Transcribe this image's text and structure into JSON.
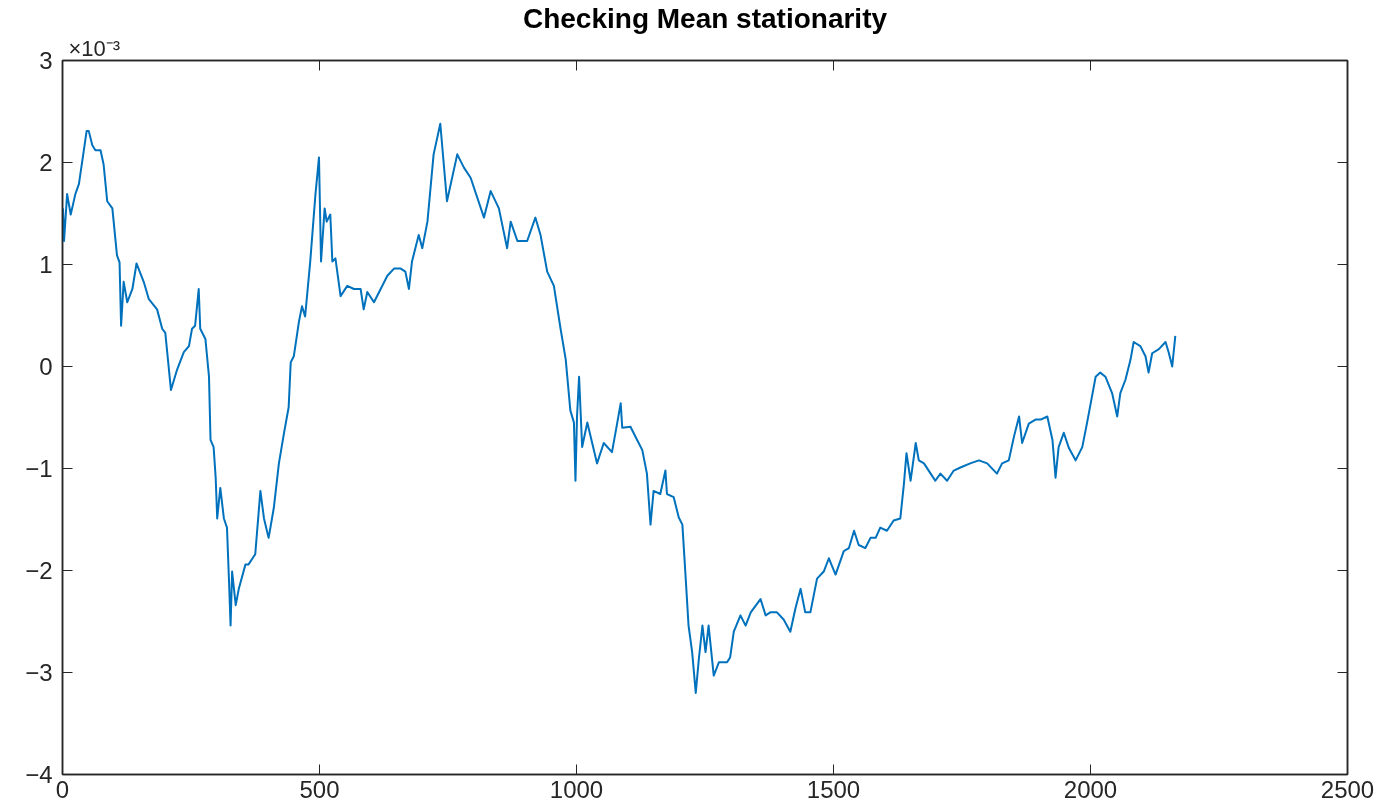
{
  "chart_data": {
    "type": "line",
    "title": "Checking Mean stationarity",
    "annotations": [
      "×10⁻³"
    ],
    "x": [
      1,
      3,
      9,
      16,
      25,
      32,
      47,
      51,
      58,
      64,
      74,
      80,
      87,
      97,
      106,
      111,
      114,
      119,
      126,
      136,
      144,
      158,
      168,
      184,
      194,
      200,
      211,
      223,
      236,
      246,
      252,
      258,
      265,
      268,
      278,
      285,
      288,
      294,
      298,
      301,
      307,
      314,
      320,
      324,
      327,
      330,
      337,
      343,
      356,
      362,
      375,
      385,
      392,
      401,
      411,
      421,
      431,
      440,
      444,
      450,
      460,
      466,
      472,
      482,
      492,
      499,
      503,
      510,
      514,
      521,
      525,
      531,
      541,
      554,
      567,
      580,
      586,
      593,
      606,
      619,
      632,
      645,
      658,
      667,
      674,
      680,
      693,
      700,
      710,
      722,
      735,
      748,
      768,
      781,
      794,
      820,
      833,
      849,
      865,
      872,
      885,
      904,
      920,
      930,
      943,
      956,
      969,
      979,
      988,
      995,
      998,
      1001,
      1005,
      1011,
      1021,
      1040,
      1053,
      1069,
      1079,
      1086,
      1089,
      1105,
      1118,
      1128,
      1137,
      1144,
      1150,
      1163,
      1173,
      1176,
      1189,
      1199,
      1206,
      1212,
      1218,
      1225,
      1232,
      1238,
      1245,
      1251,
      1257,
      1267,
      1277,
      1293,
      1299,
      1306,
      1319,
      1329,
      1339,
      1358,
      1368,
      1377,
      1390,
      1403,
      1416,
      1426,
      1436,
      1445,
      1455,
      1468,
      1481,
      1491,
      1504,
      1520,
      1530,
      1540,
      1549,
      1562,
      1572,
      1582,
      1591,
      1604,
      1617,
      1630,
      1637,
      1642,
      1650,
      1660,
      1666,
      1676,
      1689,
      1698,
      1708,
      1721,
      1734,
      1747,
      1766,
      1783,
      1799,
      1818,
      1828,
      1841,
      1851,
      1861,
      1867,
      1880,
      1893,
      1903,
      1916,
      1926,
      1932,
      1938,
      1948,
      1958,
      1971,
      1984,
      1993,
      2003,
      2010,
      2019,
      2029,
      2042,
      2052,
      2058,
      2068,
      2078,
      2084,
      2097,
      2107,
      2113,
      2120,
      2133,
      2146,
      2152,
      2159,
      2165
    ],
    "values": [
      1.55,
      1.23,
      1.69,
      1.49,
      1.69,
      1.79,
      2.31,
      2.31,
      2.17,
      2.12,
      2.12,
      1.98,
      1.62,
      1.55,
      1.09,
      1.02,
      0.4,
      0.83,
      0.63,
      0.76,
      1.01,
      0.83,
      0.66,
      0.56,
      0.37,
      0.33,
      -0.23,
      -0.03,
      0.14,
      0.2,
      0.37,
      0.4,
      0.76,
      0.37,
      0.27,
      -0.1,
      -0.72,
      -0.79,
      -1.09,
      -1.49,
      -1.19,
      -1.49,
      -1.58,
      -2.11,
      -2.54,
      -2.01,
      -2.34,
      -2.18,
      -1.94,
      -1.94,
      -1.84,
      -1.22,
      -1.49,
      -1.68,
      -1.39,
      -0.95,
      -0.65,
      -0.4,
      0.04,
      0.1,
      0.44,
      0.59,
      0.49,
      1.03,
      1.68,
      2.05,
      1.03,
      1.55,
      1.42,
      1.49,
      1.03,
      1.06,
      0.69,
      0.79,
      0.76,
      0.76,
      0.56,
      0.73,
      0.63,
      0.76,
      0.89,
      0.96,
      0.96,
      0.93,
      0.76,
      1.03,
      1.29,
      1.16,
      1.42,
      2.08,
      2.38,
      1.62,
      2.08,
      1.95,
      1.85,
      1.46,
      1.72,
      1.55,
      1.16,
      1.42,
      1.23,
      1.23,
      1.46,
      1.29,
      0.93,
      0.79,
      0.37,
      0.07,
      -0.43,
      -0.55,
      -1.12,
      -0.49,
      -0.1,
      -0.79,
      -0.55,
      -0.95,
      -0.75,
      -0.84,
      -0.56,
      -0.36,
      -0.6,
      -0.59,
      -0.72,
      -0.82,
      -1.05,
      -1.55,
      -1.22,
      -1.25,
      -1.02,
      -1.25,
      -1.28,
      -1.48,
      -1.55,
      -2.04,
      -2.54,
      -2.8,
      -3.2,
      -2.87,
      -2.54,
      -2.8,
      -2.54,
      -3.03,
      -2.9,
      -2.9,
      -2.85,
      -2.6,
      -2.44,
      -2.54,
      -2.41,
      -2.28,
      -2.44,
      -2.41,
      -2.41,
      -2.48,
      -2.6,
      -2.37,
      -2.18,
      -2.41,
      -2.41,
      -2.08,
      -2.01,
      -1.88,
      -2.04,
      -1.81,
      -1.78,
      -1.61,
      -1.75,
      -1.78,
      -1.68,
      -1.68,
      -1.58,
      -1.61,
      -1.51,
      -1.49,
      -1.15,
      -0.85,
      -1.12,
      -0.75,
      -0.92,
      -0.95,
      -1.05,
      -1.12,
      -1.05,
      -1.12,
      -1.02,
      -0.99,
      -0.95,
      -0.92,
      -0.95,
      -1.05,
      -0.95,
      -0.92,
      -0.69,
      -0.49,
      -0.75,
      -0.56,
      -0.52,
      -0.52,
      -0.49,
      -0.72,
      -1.09,
      -0.79,
      -0.65,
      -0.8,
      -0.92,
      -0.79,
      -0.56,
      -0.29,
      -0.1,
      -0.06,
      -0.1,
      -0.26,
      -0.49,
      -0.26,
      -0.13,
      0.07,
      0.24,
      0.2,
      0.1,
      -0.06,
      0.13,
      0.17,
      0.24,
      0.14,
      0.0,
      0.3
    ],
    "color": "#0072bd",
    "xlim": [
      0,
      2500
    ],
    "ylim": [
      -4,
      3
    ],
    "xticks": [
      0,
      500,
      1000,
      1500,
      2000,
      2500
    ],
    "yticks": [
      -4,
      -3,
      -2,
      -1,
      0,
      1,
      2,
      3
    ],
    "grid": false
  }
}
